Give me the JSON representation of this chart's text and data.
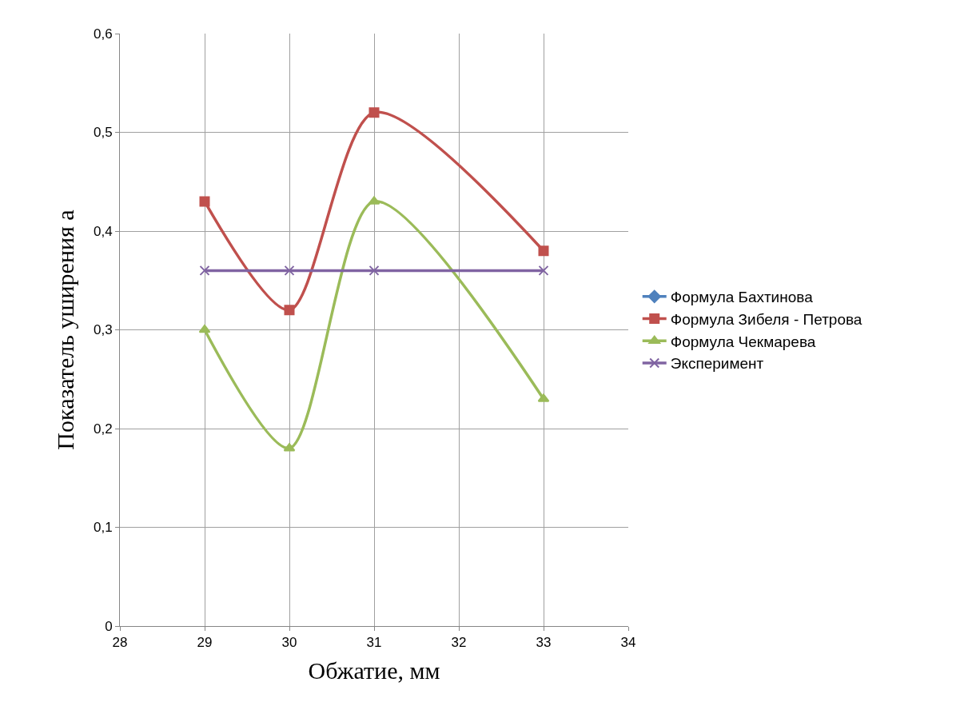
{
  "chart_data": {
    "type": "line",
    "xlabel": "Обжатие, мм",
    "ylabel": "Показатель уширения а",
    "x": [
      29,
      30,
      31,
      33
    ],
    "series": [
      {
        "name": "Формула Бахтинова",
        "color": "#4f81bd",
        "marker": "diamond",
        "values": [
          null,
          null,
          null,
          null
        ]
      },
      {
        "name": "Формула Зибеля - Петрова",
        "color": "#c0504d",
        "marker": "square",
        "values": [
          0.43,
          0.32,
          0.52,
          0.38
        ]
      },
      {
        "name": "Формула Чекмарева",
        "color": "#9bbb59",
        "marker": "triangle",
        "values": [
          0.3,
          0.18,
          0.43,
          0.23
        ]
      },
      {
        "name": "Эксперимент",
        "color": "#8064a2",
        "marker": "cross",
        "values": [
          0.36,
          0.36,
          0.36,
          0.36
        ]
      }
    ],
    "xlim": [
      28,
      34
    ],
    "xticks": [
      28,
      29,
      30,
      31,
      32,
      33,
      34
    ],
    "ylim": [
      0,
      0.6
    ],
    "yticks": [
      0,
      {
        "value": 0.1,
        "label": "0,1"
      },
      {
        "value": 0.2,
        "label": "0,2"
      },
      {
        "value": 0.3,
        "label": "0,3"
      },
      {
        "value": 0.4,
        "label": "0,4"
      },
      {
        "value": 0.5,
        "label": "0,5"
      },
      {
        "value": 0.6,
        "label": "0,6"
      }
    ],
    "grid": true,
    "legend": "right",
    "line_style": "solid"
  }
}
